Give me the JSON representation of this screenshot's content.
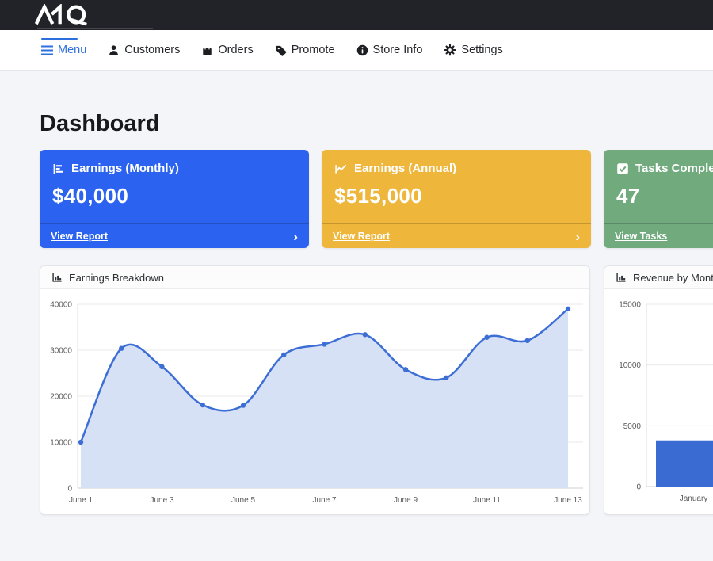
{
  "brand": {
    "logo_text": "MQ",
    "bar_color": "#212329"
  },
  "nav": {
    "items": [
      {
        "label": "Menu",
        "icon": "menu-icon",
        "active": true
      },
      {
        "label": "Customers",
        "icon": "person-icon",
        "active": false
      },
      {
        "label": "Orders",
        "icon": "bag-icon",
        "active": false
      },
      {
        "label": "Promote",
        "icon": "tag-icon",
        "active": false
      },
      {
        "label": "Store Info",
        "icon": "info-icon",
        "active": false
      },
      {
        "label": "Settings",
        "icon": "gear-icon",
        "active": false
      }
    ],
    "accent_color": "#2e6fe0"
  },
  "page": {
    "title": "Dashboard"
  },
  "stat_cards": [
    {
      "title": "Earnings (Monthly)",
      "value": "$40,000",
      "link": "View Report",
      "icon": "bar-chart-icon",
      "color": "#2b63f0",
      "chevron": "›"
    },
    {
      "title": "Earnings (Annual)",
      "value": "$515,000",
      "link": "View Report",
      "icon": "line-chart-icon",
      "color": "#efb63c",
      "chevron": "›"
    },
    {
      "title": "Tasks Completed",
      "value": "47",
      "link": "View Tasks",
      "icon": "check-square-icon",
      "color": "#70aa7d",
      "chevron": "›"
    }
  ],
  "chart_data": [
    {
      "type": "area",
      "title": "Earnings Breakdown",
      "x": [
        "June 1",
        "June 2",
        "June 3",
        "June 4",
        "June 5",
        "June 6",
        "June 7",
        "June 8",
        "June 9",
        "June 10",
        "June 11",
        "June 12",
        "June 13"
      ],
      "values": [
        10000,
        30400,
        26400,
        18100,
        18000,
        29000,
        31300,
        33400,
        25800,
        24000,
        32800,
        32100,
        39000
      ],
      "xtick_labels": [
        "June 1",
        "June 3",
        "June 5",
        "June 7",
        "June 9",
        "June 11",
        "June 13"
      ],
      "xtick_every": 2,
      "ylim": [
        0,
        40000
      ],
      "yticks": [
        0,
        10000,
        20000,
        30000,
        40000
      ],
      "grid": true,
      "legend": false,
      "line_color": "#3d6ed5",
      "fill_color": "#d7e1f6",
      "point_color": "#3d6ed5"
    },
    {
      "type": "bar",
      "title": "Revenue by Month",
      "categories": [
        "January"
      ],
      "values": [
        3800
      ],
      "ylim": [
        0,
        15000
      ],
      "yticks": [
        0,
        5000,
        10000,
        15000
      ],
      "grid": true,
      "legend": false,
      "bar_color": "#3a6bd2"
    }
  ]
}
